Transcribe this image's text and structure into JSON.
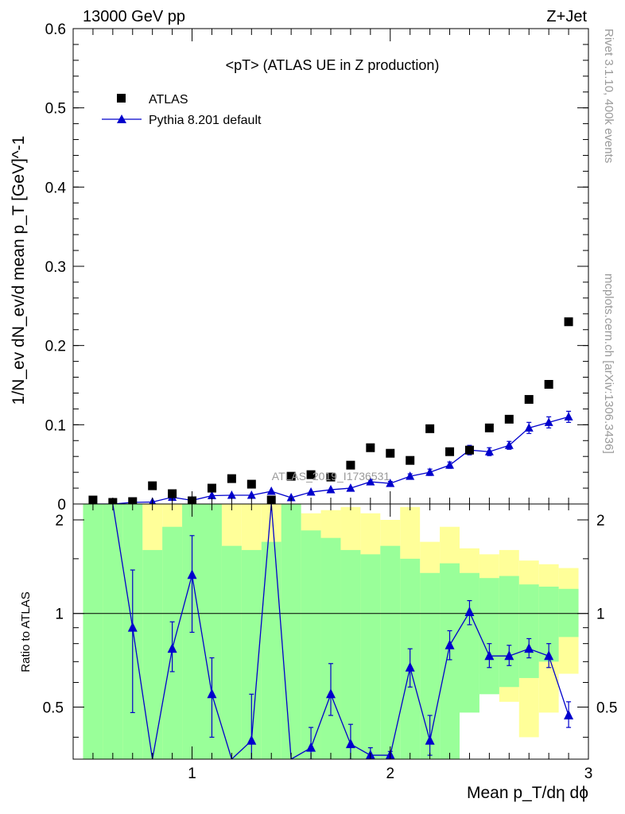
{
  "header": {
    "left": "13000 GeV pp",
    "right": "Z+Jet"
  },
  "side_labels": {
    "rivet": "Rivet 3.1.10,  400k events",
    "mcplots": "mcplots.cern.ch [arXiv:1306.3436]"
  },
  "watermark": "ATLAS_2019_I1736531",
  "colors": {
    "data": "#000000",
    "mc": "#0000cc",
    "band_green": "#99ff99",
    "band_yellow": "#ffff99",
    "ref_line": "#000000"
  },
  "chart_data": [
    {
      "type": "scatter",
      "title": "<pT> (ATLAS UE in Z production)",
      "xlabel": "Mean p_T/dη dϕ",
      "ylabel": "1/N_ev dN_ev/d mean p_T [GeV]^-1",
      "xlim": [
        0.4,
        3.0
      ],
      "ylim": [
        0,
        0.6
      ],
      "yticks": [
        0,
        0.1,
        0.2,
        0.3,
        0.4,
        0.5,
        0.6
      ],
      "ytick_labels": [
        "0",
        "0.1",
        "0.2",
        "0.3",
        "0.4",
        "0.5",
        "0.6"
      ],
      "legend": {
        "position": "top-left"
      },
      "series": [
        {
          "name": "ATLAS",
          "marker": "square",
          "x": [
            0.5,
            0.6,
            0.7,
            0.8,
            0.9,
            1.0,
            1.1,
            1.2,
            1.3,
            1.4,
            1.5,
            1.6,
            1.7,
            1.8,
            1.9,
            2.0,
            2.1,
            2.2,
            2.3,
            2.4,
            2.5,
            2.6,
            2.7,
            2.8,
            2.9
          ],
          "y": [
            0.005,
            0.002,
            0.003,
            0.023,
            0.013,
            0.004,
            0.02,
            0.032,
            0.025,
            0.005,
            0.035,
            0.037,
            0.034,
            0.049,
            0.071,
            0.064,
            0.055,
            0.095,
            0.066,
            0.068,
            0.096,
            0.107,
            0.132,
            0.151,
            0.23
          ]
        },
        {
          "name": "Pythia 8.201 default",
          "marker": "triangle",
          "x": [
            0.5,
            0.6,
            0.7,
            0.8,
            0.9,
            1.0,
            1.1,
            1.2,
            1.3,
            1.4,
            1.5,
            1.6,
            1.7,
            1.8,
            1.9,
            2.0,
            2.1,
            2.2,
            2.3,
            2.4,
            2.5,
            2.6,
            2.7,
            2.8,
            2.9
          ],
          "y": [
            0.0,
            0.0,
            0.002,
            0.0025,
            0.0085,
            0.0045,
            0.0105,
            0.011,
            0.011,
            0.016,
            0.008,
            0.015,
            0.018,
            0.02,
            0.028,
            0.026,
            0.035,
            0.04,
            0.049,
            0.068,
            0.066,
            0.074,
            0.096,
            0.103,
            0.11
          ],
          "yerr": [
            0.0,
            0.0,
            0.001,
            0.001,
            0.001,
            0.001,
            0.0015,
            0.0015,
            0.0015,
            0.002,
            0.0015,
            0.002,
            0.002,
            0.002,
            0.0025,
            0.0025,
            0.003,
            0.004,
            0.004,
            0.006,
            0.005,
            0.005,
            0.007,
            0.007,
            0.007
          ]
        }
      ]
    },
    {
      "type": "line",
      "ylabel": "Ratio to ATLAS",
      "xlim": [
        0.4,
        3.0
      ],
      "ylim": [
        0.34,
        2.25
      ],
      "log_y": true,
      "xticks": [
        1,
        2,
        3
      ],
      "xtick_labels": [
        "1",
        "2",
        "3"
      ],
      "yticks": [
        0.5,
        1,
        2
      ],
      "ytick_labels": [
        "0.5",
        "1",
        "2"
      ],
      "reference": 1,
      "bins": {
        "edges": [
          0.45,
          0.55,
          0.65,
          0.75,
          0.85,
          0.95,
          1.05,
          1.15,
          1.25,
          1.35,
          1.45,
          1.55,
          1.65,
          1.75,
          1.85,
          1.95,
          2.05,
          2.15,
          2.25,
          2.35,
          2.45,
          2.55,
          2.65,
          2.75,
          2.85,
          2.95
        ],
        "green_low": [
          0.34,
          0.34,
          0.34,
          0.34,
          0.34,
          0.34,
          0.34,
          0.34,
          0.34,
          0.34,
          0.34,
          0.34,
          0.34,
          0.34,
          0.34,
          0.34,
          0.34,
          0.34,
          0.34,
          0.48,
          0.55,
          0.58,
          0.62,
          0.7,
          0.84
        ],
        "green_high": [
          2.25,
          2.25,
          2.25,
          1.6,
          1.9,
          2.25,
          2.25,
          1.65,
          1.6,
          1.7,
          2.25,
          1.85,
          1.75,
          1.6,
          1.55,
          1.65,
          1.5,
          1.35,
          1.45,
          1.35,
          1.3,
          1.32,
          1.24,
          1.22,
          1.2
        ],
        "yellow_low": [
          0.34,
          0.34,
          0.34,
          0.34,
          0.34,
          0.34,
          0.34,
          0.34,
          0.34,
          0.34,
          0.34,
          0.34,
          0.34,
          0.34,
          0.45,
          0.43,
          0.36,
          0.62,
          0.5,
          0.64,
          0.66,
          0.52,
          0.4,
          0.48,
          0.64
        ],
        "yellow_high": [
          2.25,
          2.25,
          2.25,
          2.25,
          2.25,
          2.25,
          2.25,
          2.25,
          2.25,
          2.25,
          2.25,
          2.1,
          2.15,
          2.2,
          2.1,
          2.0,
          2.2,
          1.7,
          1.9,
          1.62,
          1.55,
          1.6,
          1.48,
          1.44,
          1.4
        ]
      },
      "series": [
        {
          "name": "Pythia 8.201 default",
          "x": [
            0.5,
            0.6,
            0.7,
            0.8,
            0.9,
            1.0,
            1.1,
            1.2,
            1.3,
            1.4,
            1.5,
            1.6,
            1.7,
            1.8,
            1.9,
            2.0,
            2.1,
            2.2,
            2.3,
            2.4,
            2.5,
            2.6,
            2.7,
            2.8,
            2.9
          ],
          "y": [
            null,
            5.0,
            0.9,
            0.12,
            0.77,
            1.33,
            0.55,
            0.2,
            0.39,
            2.9,
            0.2,
            0.37,
            0.55,
            0.38,
            0.35,
            0.35,
            0.67,
            0.39,
            0.79,
            1.01,
            0.73,
            0.73,
            0.77,
            0.73,
            0.47
          ],
          "yerr_low": [
            0,
            0,
            0.42,
            0,
            0.12,
            0.46,
            0.15,
            0,
            0.1,
            0,
            0,
            0.03,
            0.08,
            0.04,
            0.01,
            0.01,
            0.09,
            0.04,
            0.08,
            0.09,
            0.06,
            0.05,
            0.05,
            0.06,
            0.04
          ],
          "yerr_high": [
            0,
            0,
            0.48,
            0,
            0.17,
            0.45,
            0.17,
            0,
            0.16,
            0,
            0,
            0.06,
            0.14,
            0.06,
            0.02,
            0.01,
            0.1,
            0.08,
            0.09,
            0.09,
            0.07,
            0.06,
            0.06,
            0.07,
            0.05
          ]
        }
      ]
    }
  ]
}
